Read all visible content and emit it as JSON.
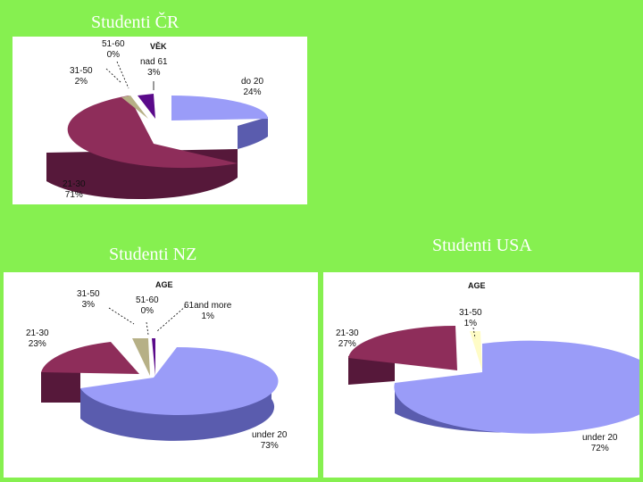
{
  "titles": {
    "cr": "Studenti ČR",
    "nz": "Studenti NZ",
    "usa": "Studenti USA"
  },
  "colors": {
    "background": "#86f050",
    "slice_blue": "#9a9cf8",
    "slice_maroon": "#8e2d5a",
    "slice_olive": "#b6b086",
    "slice_cream": "#fffcc6",
    "slice_purple": "#5a0a8a"
  },
  "chart_data": [
    {
      "type": "pie",
      "title": "Studenti ČR",
      "header": "VĚK",
      "slices": [
        {
          "label": "do 20",
          "value": 24,
          "text": "24%"
        },
        {
          "label": "21-30",
          "value": 71,
          "text": "71%"
        },
        {
          "label": "31-50",
          "value": 2,
          "text": "2%"
        },
        {
          "label": "51-60",
          "value": 0,
          "text": "0%"
        },
        {
          "label": "nad 61",
          "value": 3,
          "text": "3%"
        }
      ]
    },
    {
      "type": "pie",
      "title": "Studenti NZ",
      "header": "AGE",
      "slices": [
        {
          "label": "under 20",
          "value": 73,
          "text": "73%"
        },
        {
          "label": "21-30",
          "value": 23,
          "text": "23%"
        },
        {
          "label": "31-50",
          "value": 3,
          "text": "3%"
        },
        {
          "label": "51-60",
          "value": 0,
          "text": "0%"
        },
        {
          "label": "61and more",
          "value": 1,
          "text": "1%"
        }
      ]
    },
    {
      "type": "pie",
      "title": "Studenti USA",
      "header": "AGE",
      "slices": [
        {
          "label": "under 20",
          "value": 72,
          "text": "72%"
        },
        {
          "label": "21-30",
          "value": 27,
          "text": "27%"
        },
        {
          "label": "31-50",
          "value": 1,
          "text": "1%"
        }
      ]
    }
  ]
}
